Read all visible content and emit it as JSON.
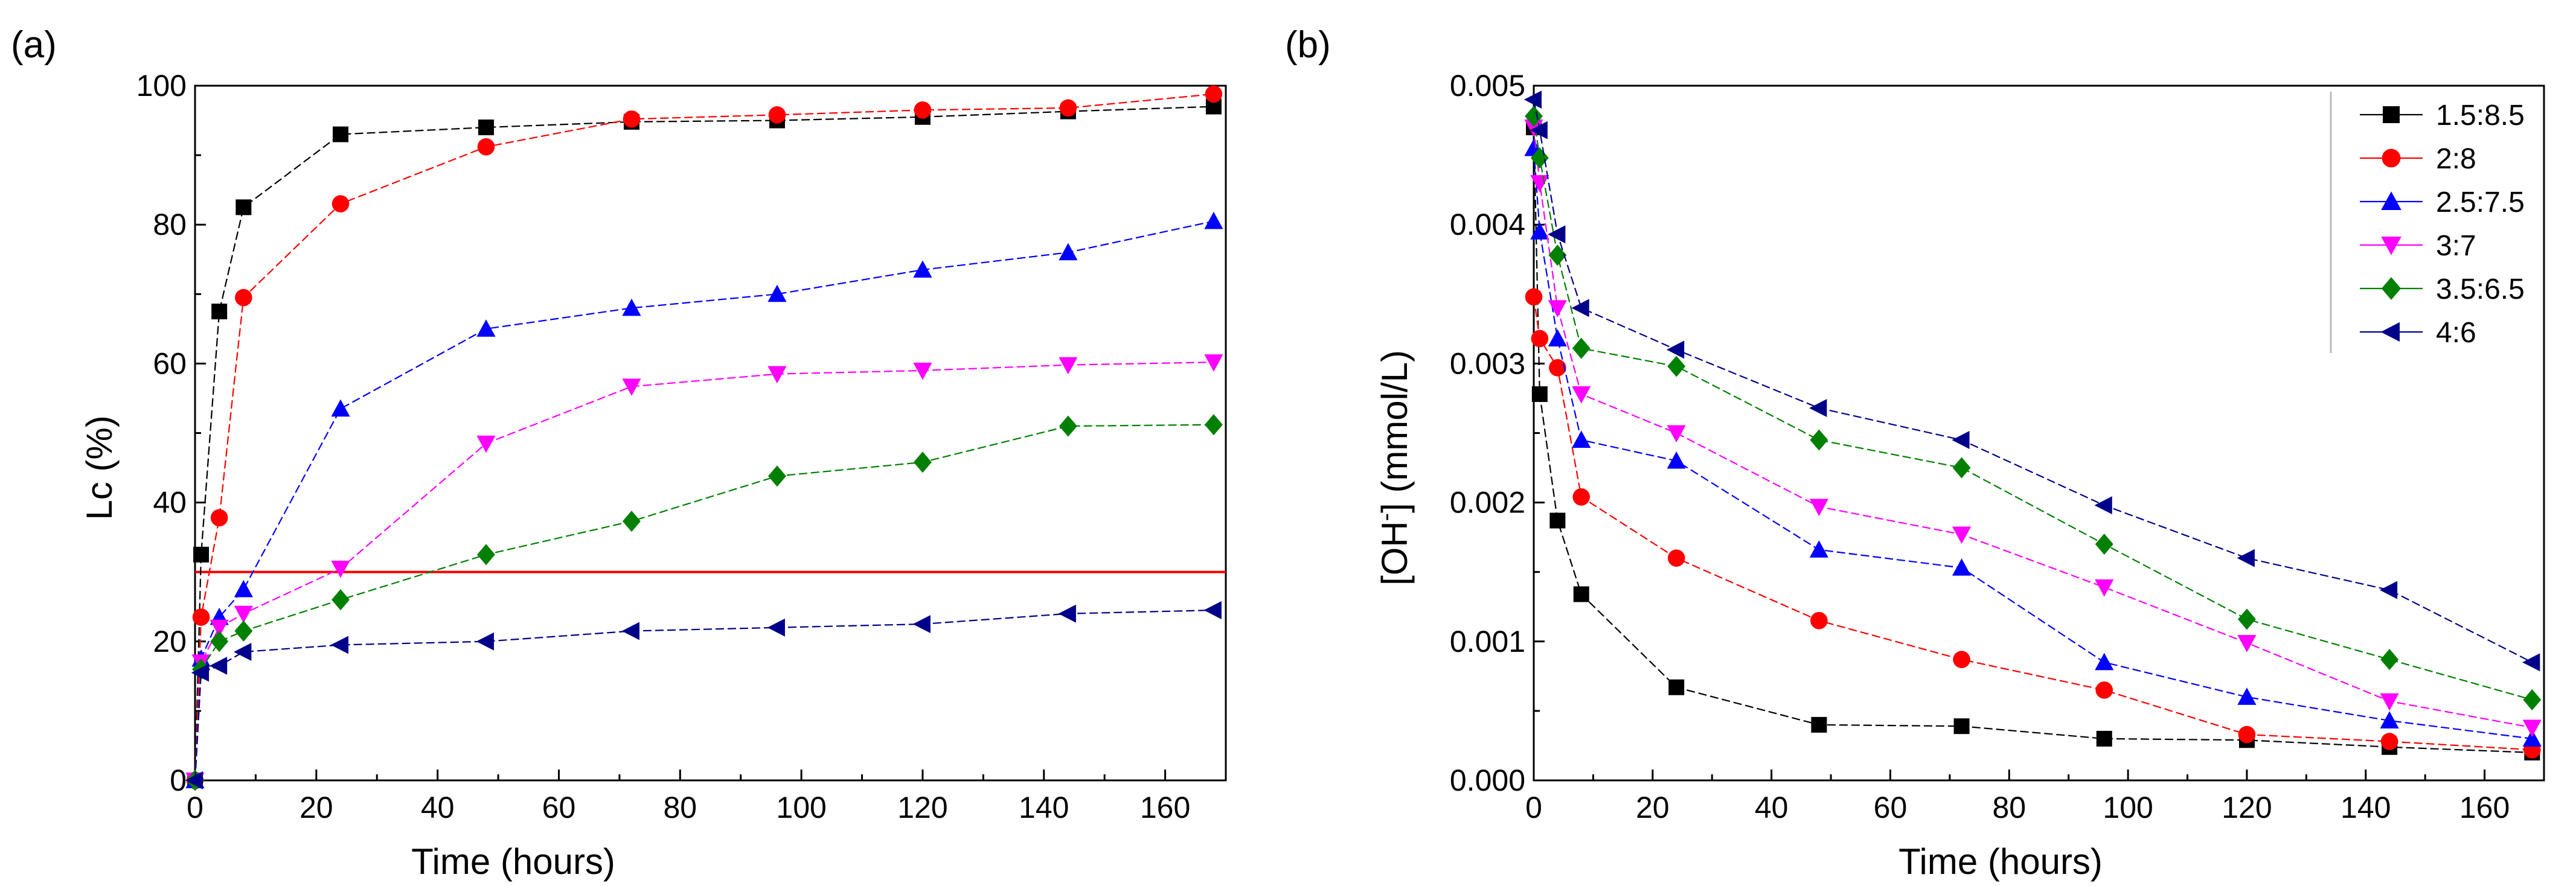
{
  "chart_data": [
    {
      "panel_label": "(a)",
      "type": "line",
      "xlabel": "Time (hours)",
      "ylabel": "Lc (%)",
      "xlim": [
        0,
        170
      ],
      "ylim": [
        0,
        100
      ],
      "xticks": [
        0,
        20,
        40,
        60,
        80,
        100,
        120,
        140,
        160
      ],
      "yticks": [
        0,
        20,
        40,
        60,
        80,
        100
      ],
      "xtick_labels": [
        "0",
        "20",
        "40",
        "60",
        "80",
        "100",
        "120",
        "140",
        "160"
      ],
      "ytick_labels": [
        "0",
        "20",
        "40",
        "60",
        "80",
        "100"
      ],
      "reference_line": {
        "y": 30,
        "color": "#ff0000"
      },
      "series": [
        {
          "name": "1.5:8.5",
          "color": "#000000",
          "marker": "square",
          "x": [
            0,
            1,
            4,
            8,
            24,
            48,
            72,
            96,
            120,
            144,
            168
          ],
          "y": [
            0,
            32.5,
            67.5,
            82.5,
            93,
            94,
            94.8,
            95,
            95.5,
            96.3,
            97
          ]
        },
        {
          "name": "2:8",
          "color": "#ff0000",
          "marker": "circle",
          "x": [
            0,
            1,
            4,
            8,
            24,
            48,
            72,
            96,
            120,
            144,
            168
          ],
          "y": [
            0,
            23.5,
            37.8,
            69.5,
            83,
            91.2,
            95.2,
            95.8,
            96.5,
            96.8,
            98.8
          ]
        },
        {
          "name": "2.5:7.5",
          "color": "#0000ff",
          "marker": "triangle-up",
          "x": [
            0,
            1,
            4,
            8,
            24,
            48,
            72,
            96,
            120,
            144,
            168
          ],
          "y": [
            0,
            17.5,
            23.5,
            27.5,
            53.5,
            65,
            68,
            70,
            73.5,
            76,
            80.5
          ]
        },
        {
          "name": "3:7",
          "color": "#ff00ff",
          "marker": "triangle-down",
          "x": [
            0,
            1,
            4,
            8,
            24,
            48,
            72,
            96,
            120,
            144,
            168
          ],
          "y": [
            0,
            17,
            22,
            24,
            30.5,
            48.5,
            56.7,
            58.5,
            59,
            59.8,
            60.2
          ]
        },
        {
          "name": "3.5:6.5",
          "color": "#008000",
          "marker": "diamond",
          "x": [
            0,
            1,
            4,
            8,
            24,
            48,
            72,
            96,
            120,
            144,
            168
          ],
          "y": [
            0,
            16,
            20,
            21.5,
            26,
            32.5,
            37.3,
            43.8,
            45.8,
            51,
            51.2
          ]
        },
        {
          "name": "4:6",
          "color": "#00008b",
          "marker": "triangle-left",
          "x": [
            0,
            1,
            4,
            8,
            24,
            48,
            72,
            96,
            120,
            144,
            168
          ],
          "y": [
            0,
            15.5,
            16.5,
            18.5,
            19.5,
            20,
            21.5,
            22,
            22.5,
            24,
            24.5
          ]
        }
      ]
    },
    {
      "panel_label": "(b)",
      "type": "line",
      "xlabel": "Time (hours)",
      "ylabel_prefix": "[OH",
      "ylabel_sup": "-",
      "ylabel_suffix": "] (mmol/L)",
      "xlim": [
        0,
        170
      ],
      "ylim": [
        0,
        0.005
      ],
      "xticks": [
        0,
        20,
        40,
        60,
        80,
        100,
        120,
        140,
        160
      ],
      "yticks": [
        0,
        0.001,
        0.002,
        0.003,
        0.004,
        0.005
      ],
      "xtick_labels": [
        "0",
        "20",
        "40",
        "60",
        "80",
        "100",
        "120",
        "140",
        "160"
      ],
      "ytick_labels": [
        "0.000",
        "0.001",
        "0.002",
        "0.003",
        "0.004",
        "0.005"
      ],
      "legend_position": "top-right",
      "series": [
        {
          "name": "1.5:8.5",
          "color": "#000000",
          "marker": "square",
          "x": [
            0,
            1,
            4,
            8,
            24,
            48,
            72,
            96,
            120,
            144,
            168
          ],
          "y": [
            0.0047,
            0.00278,
            0.00187,
            0.00134,
            0.00067,
            0.0004,
            0.00039,
            0.0003,
            0.00029,
            0.00024,
            0.0002
          ]
        },
        {
          "name": "2:8",
          "color": "#ff0000",
          "marker": "circle",
          "x": [
            0,
            1,
            4,
            8,
            24,
            48,
            72,
            96,
            120,
            144,
            168
          ],
          "y": [
            0.00348,
            0.00318,
            0.00297,
            0.00204,
            0.0016,
            0.00115,
            0.00087,
            0.00065,
            0.00033,
            0.00028,
            0.00022
          ]
        },
        {
          "name": "2.5:7.5",
          "color": "#0000ff",
          "marker": "triangle-up",
          "x": [
            0,
            1,
            4,
            8,
            24,
            48,
            72,
            96,
            120,
            144,
            168
          ],
          "y": [
            0.00455,
            0.00395,
            0.00318,
            0.00245,
            0.0023,
            0.00166,
            0.00153,
            0.00085,
            0.0006,
            0.00043,
            0.0003
          ]
        },
        {
          "name": "3:7",
          "color": "#ff00ff",
          "marker": "triangle-down",
          "x": [
            0,
            1,
            4,
            8,
            24,
            48,
            72,
            96,
            120,
            144,
            168
          ],
          "y": [
            0.0047,
            0.0043,
            0.0034,
            0.00278,
            0.0025,
            0.00197,
            0.00177,
            0.00139,
            0.00099,
            0.00057,
            0.00038
          ]
        },
        {
          "name": "3.5:6.5",
          "color": "#008000",
          "marker": "diamond",
          "x": [
            0,
            1,
            4,
            8,
            24,
            48,
            72,
            96,
            120,
            144,
            168
          ],
          "y": [
            0.00478,
            0.00448,
            0.00378,
            0.00311,
            0.00298,
            0.00245,
            0.00225,
            0.0017,
            0.00116,
            0.00087,
            0.00058
          ]
        },
        {
          "name": "4:6",
          "color": "#00008b",
          "marker": "triangle-left",
          "x": [
            0,
            1,
            4,
            8,
            24,
            48,
            72,
            96,
            120,
            144,
            168
          ],
          "y": [
            0.0049,
            0.00468,
            0.00393,
            0.0034,
            0.0031,
            0.00268,
            0.00245,
            0.00198,
            0.0016,
            0.00137,
            0.00085
          ]
        }
      ]
    }
  ]
}
